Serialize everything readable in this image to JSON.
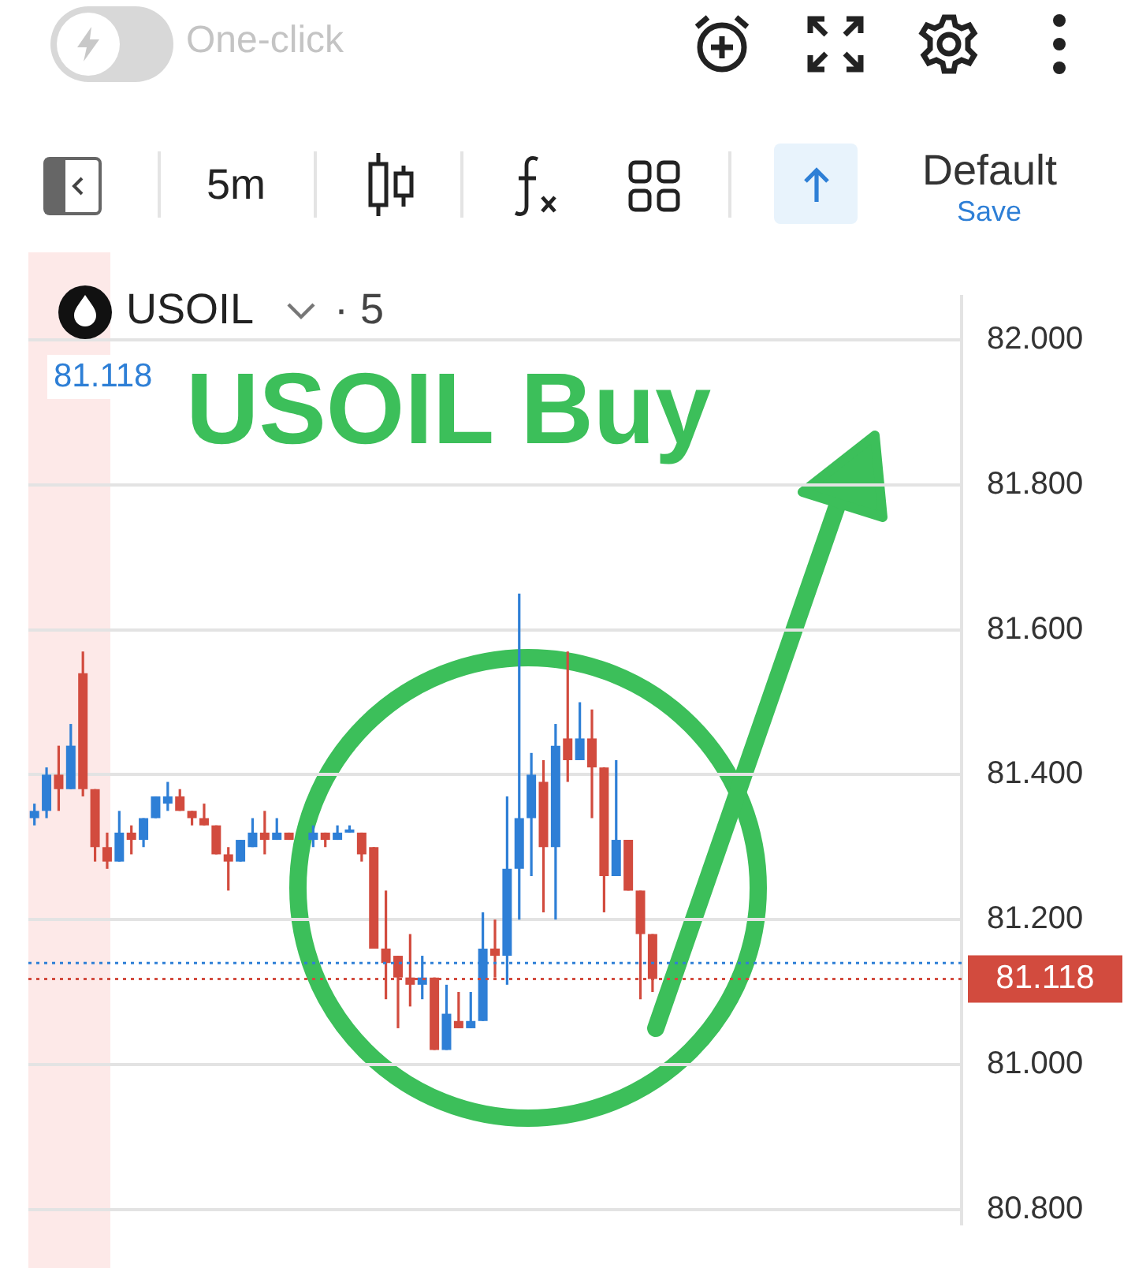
{
  "chart_data": {
    "type": "candlestick",
    "title": "USOIL",
    "subtitle": "· 5",
    "categories": [
      null,
      null,
      null,
      null,
      null,
      null,
      null,
      null,
      null,
      null,
      null,
      null,
      null,
      null,
      null,
      null,
      null,
      null,
      null,
      null,
      null,
      null,
      null,
      null,
      null,
      null,
      null,
      null,
      null,
      null,
      null,
      null,
      null,
      null,
      null,
      null,
      null,
      null,
      null,
      null,
      null,
      null,
      null,
      null,
      null,
      null,
      null,
      null,
      null,
      null,
      null,
      null,
      null,
      null,
      null,
      null,
      null,
      null,
      null,
      null,
      null,
      null,
      null,
      null,
      null,
      null,
      null,
      null,
      null,
      null,
      null,
      null,
      null,
      null,
      null,
      null,
      null
    ],
    "ohlc": [
      [
        81.34,
        81.36,
        81.33,
        81.35
      ],
      [
        81.35,
        81.41,
        81.34,
        81.4
      ],
      [
        81.4,
        81.44,
        81.35,
        81.38
      ],
      [
        81.38,
        81.47,
        81.38,
        81.44
      ],
      [
        81.54,
        81.57,
        81.37,
        81.38
      ],
      [
        81.38,
        81.38,
        81.28,
        81.3
      ],
      [
        81.3,
        81.32,
        81.27,
        81.28
      ],
      [
        81.28,
        81.35,
        81.28,
        81.32
      ],
      [
        81.32,
        81.33,
        81.29,
        81.31
      ],
      [
        81.31,
        81.34,
        81.3,
        81.34
      ],
      [
        81.34,
        81.37,
        81.34,
        81.37
      ],
      [
        81.36,
        81.39,
        81.35,
        81.37
      ],
      [
        81.37,
        81.38,
        81.35,
        81.35
      ],
      [
        81.35,
        81.35,
        81.33,
        81.34
      ],
      [
        81.34,
        81.36,
        81.33,
        81.33
      ],
      [
        81.33,
        81.33,
        81.29,
        81.29
      ],
      [
        81.29,
        81.3,
        81.24,
        81.28
      ],
      [
        81.28,
        81.31,
        81.28,
        81.31
      ],
      [
        81.3,
        81.34,
        81.3,
        81.32
      ],
      [
        81.32,
        81.35,
        81.29,
        81.31
      ],
      [
        81.31,
        81.34,
        81.31,
        81.32
      ],
      [
        81.32,
        81.32,
        81.31,
        81.31
      ],
      null,
      [
        81.31,
        81.33,
        81.3,
        81.32
      ],
      [
        81.32,
        81.32,
        81.3,
        81.31
      ],
      [
        81.31,
        81.33,
        81.31,
        81.32
      ],
      [
        81.32,
        81.33,
        81.32,
        81.32
      ],
      [
        81.32,
        81.32,
        81.28,
        81.29
      ],
      [
        81.3,
        81.3,
        81.16,
        81.16
      ],
      [
        81.16,
        81.24,
        81.09,
        81.14
      ],
      [
        81.15,
        81.15,
        81.05,
        81.12
      ],
      [
        81.12,
        81.18,
        81.08,
        81.11
      ],
      [
        81.11,
        81.15,
        81.09,
        81.12
      ],
      [
        81.12,
        81.12,
        81.02,
        81.02
      ],
      [
        81.02,
        81.11,
        81.02,
        81.07
      ],
      [
        81.06,
        81.1,
        81.05,
        81.05
      ],
      [
        81.05,
        81.1,
        81.05,
        81.06
      ],
      [
        81.06,
        81.21,
        81.06,
        81.16
      ],
      [
        81.16,
        81.2,
        81.12,
        81.15
      ],
      [
        81.15,
        81.37,
        81.11,
        81.27
      ],
      [
        81.27,
        81.65,
        81.2,
        81.34
      ],
      [
        81.34,
        81.43,
        81.26,
        81.4
      ],
      [
        81.39,
        81.42,
        81.21,
        81.3
      ],
      [
        81.3,
        81.47,
        81.2,
        81.44
      ],
      [
        81.45,
        81.57,
        81.39,
        81.42
      ],
      [
        81.42,
        81.5,
        81.42,
        81.45
      ],
      [
        81.45,
        81.49,
        81.34,
        81.41
      ],
      [
        81.41,
        81.41,
        81.21,
        81.26
      ],
      [
        81.26,
        81.42,
        81.26,
        81.31
      ],
      [
        81.31,
        81.31,
        81.24,
        81.24
      ],
      [
        81.24,
        81.24,
        81.09,
        81.18
      ],
      [
        81.18,
        81.18,
        81.1,
        81.118
      ],
      null,
      null,
      null,
      null,
      null,
      null,
      null,
      null,
      null,
      null,
      null,
      null,
      null,
      null,
      null,
      null,
      null,
      null,
      null,
      null,
      null,
      null,
      null,
      null,
      null
    ],
    "colors": [
      "#2e7fd6",
      "#2e7fd6",
      "#d24b3e",
      "#2e7fd6",
      "#d24b3e",
      "#d24b3e",
      "#d24b3e",
      "#2e7fd6",
      "#d24b3e",
      "#2e7fd6",
      "#2e7fd6",
      "#2e7fd6",
      "#d24b3e",
      "#d24b3e",
      "#d24b3e",
      "#d24b3e",
      "#d24b3e",
      "#2e7fd6",
      "#2e7fd6",
      "#d24b3e",
      "#2e7fd6",
      "#d24b3e",
      null,
      "#2e7fd6",
      "#d24b3e",
      "#2e7fd6",
      "#2e7fd6",
      "#d24b3e",
      "#d24b3e",
      "#d24b3e",
      "#d24b3e",
      "#d24b3e",
      "#2e7fd6",
      "#d24b3e",
      "#2e7fd6",
      "#d24b3e",
      "#2e7fd6",
      "#2e7fd6",
      "#d24b3e",
      "#2e7fd6",
      "#2e7fd6",
      "#2e7fd6",
      "#d24b3e",
      "#2e7fd6",
      "#d24b3e",
      "#2e7fd6",
      "#d24b3e",
      "#d24b3e",
      "#2e7fd6",
      "#d24b3e",
      "#d24b3e",
      "#d24b3e",
      null,
      null,
      null,
      null,
      null,
      null,
      null,
      null,
      null,
      null,
      null,
      null,
      null,
      null,
      null,
      null,
      null,
      null,
      null,
      null,
      null,
      null,
      null,
      null,
      null
    ],
    "ylim": [
      80.78,
      82.06
    ],
    "yticks": [
      {
        "value": 80.8,
        "label": "80.800"
      },
      {
        "value": 81,
        "label": "81.000"
      },
      {
        "value": 81.2,
        "label": "81.200"
      },
      {
        "value": 81.4,
        "label": "81.400"
      },
      {
        "value": 81.6,
        "label": "81.600"
      },
      {
        "value": 81.8,
        "label": "81.800"
      },
      {
        "value": 82,
        "label": "82.000"
      }
    ],
    "grid": "y",
    "tick_labels": "y",
    "legend": false,
    "ref_lines": [
      {
        "axis": "y",
        "value": 81.14,
        "color": "#2e7fd6",
        "line_style": "dotted"
      },
      {
        "axis": "y",
        "value": 81.118,
        "label": "81.118",
        "color": "#d24b3e",
        "line_style": "dotted"
      }
    ],
    "annotations": [
      "81.118",
      "USOIL Buy",
      "One-click",
      "5m",
      "Default",
      "Save"
    ]
  }
}
